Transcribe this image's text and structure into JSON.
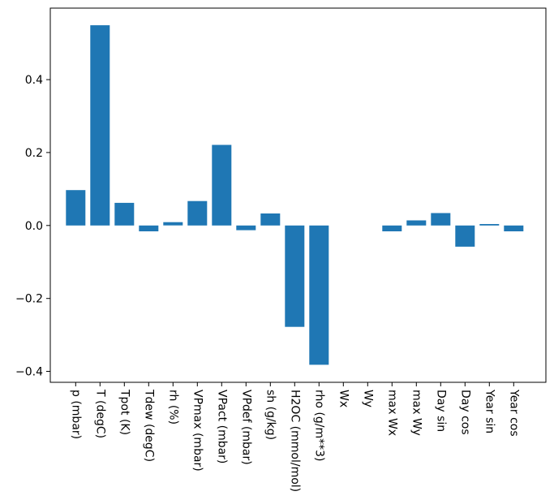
{
  "chart_data": {
    "type": "bar",
    "title": "",
    "xlabel": "",
    "ylabel": "",
    "categories": [
      "p (mbar)",
      "T (degC)",
      "Tpot (K)",
      "Tdew (degC)",
      "rh (%)",
      "VPmax (mbar)",
      "VPact (mbar)",
      "VPdef (mbar)",
      "sh (g/kg)",
      "H2OC (mmol/mol)",
      "rho (g/m**3)",
      "Wx",
      "Wy",
      "max Wx",
      "max Wy",
      "Day sin",
      "Day cos",
      "Year sin",
      "Year cos"
    ],
    "values": [
      0.097,
      0.549,
      0.062,
      -0.016,
      0.009,
      0.067,
      0.221,
      -0.013,
      0.033,
      -0.278,
      -0.382,
      0.0,
      0.0,
      -0.016,
      0.014,
      0.034,
      -0.058,
      0.004,
      -0.016
    ],
    "yticks": [
      -0.4,
      -0.2,
      0.0,
      0.2,
      0.4
    ],
    "ylim": [
      -0.43,
      0.596
    ],
    "bar_color": "#1f77b4",
    "axis_color": "#000000",
    "background": "#ffffff",
    "grid": false,
    "legend": "none",
    "xtick_rotation": 90,
    "bar_width_ratio": 0.8
  }
}
